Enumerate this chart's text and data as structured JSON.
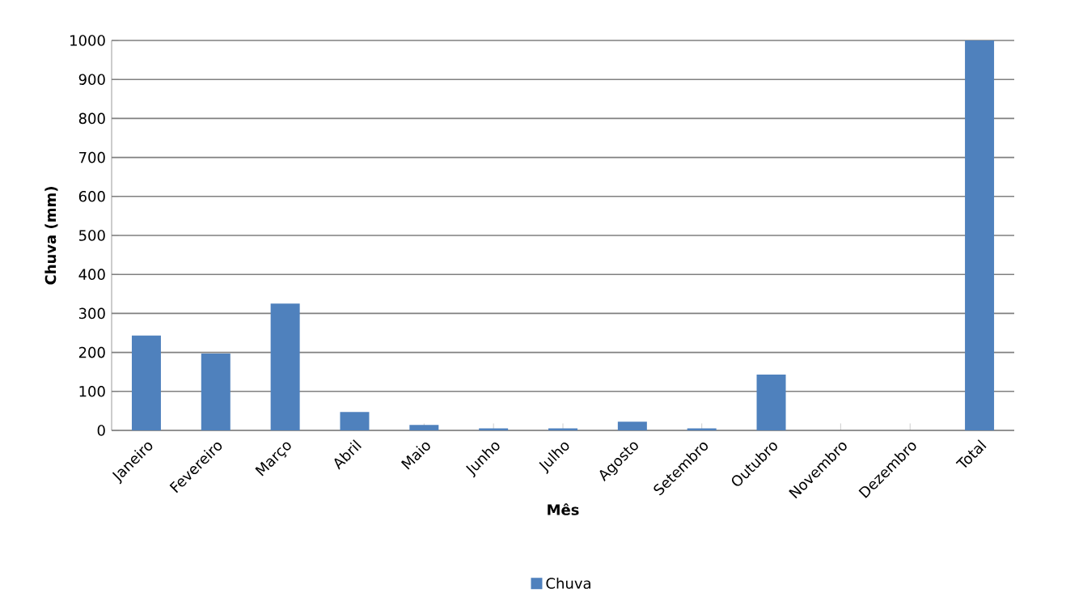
{
  "chart_data": {
    "type": "bar",
    "xlabel": "Mês",
    "ylabel": "Chuva (mm)",
    "categories": [
      "Janeiro",
      "Fevereiro",
      "Março",
      "Abril",
      "Maio",
      "Junho",
      "Julho",
      "Agosto",
      "Setembro",
      "Outubro",
      "Novembro",
      "Dezembro",
      "Total"
    ],
    "series": [
      {
        "name": "Chuva",
        "color": "#4f81bd",
        "values": [
          243,
          197,
          325,
          47,
          14,
          5,
          5,
          22,
          5,
          143,
          0,
          0,
          1000
        ]
      }
    ],
    "ylim": [
      0,
      1000
    ],
    "yticks": [
      0,
      100,
      200,
      300,
      400,
      500,
      600,
      700,
      800,
      900,
      1000
    ],
    "grid": "y",
    "legend": "bottom"
  }
}
